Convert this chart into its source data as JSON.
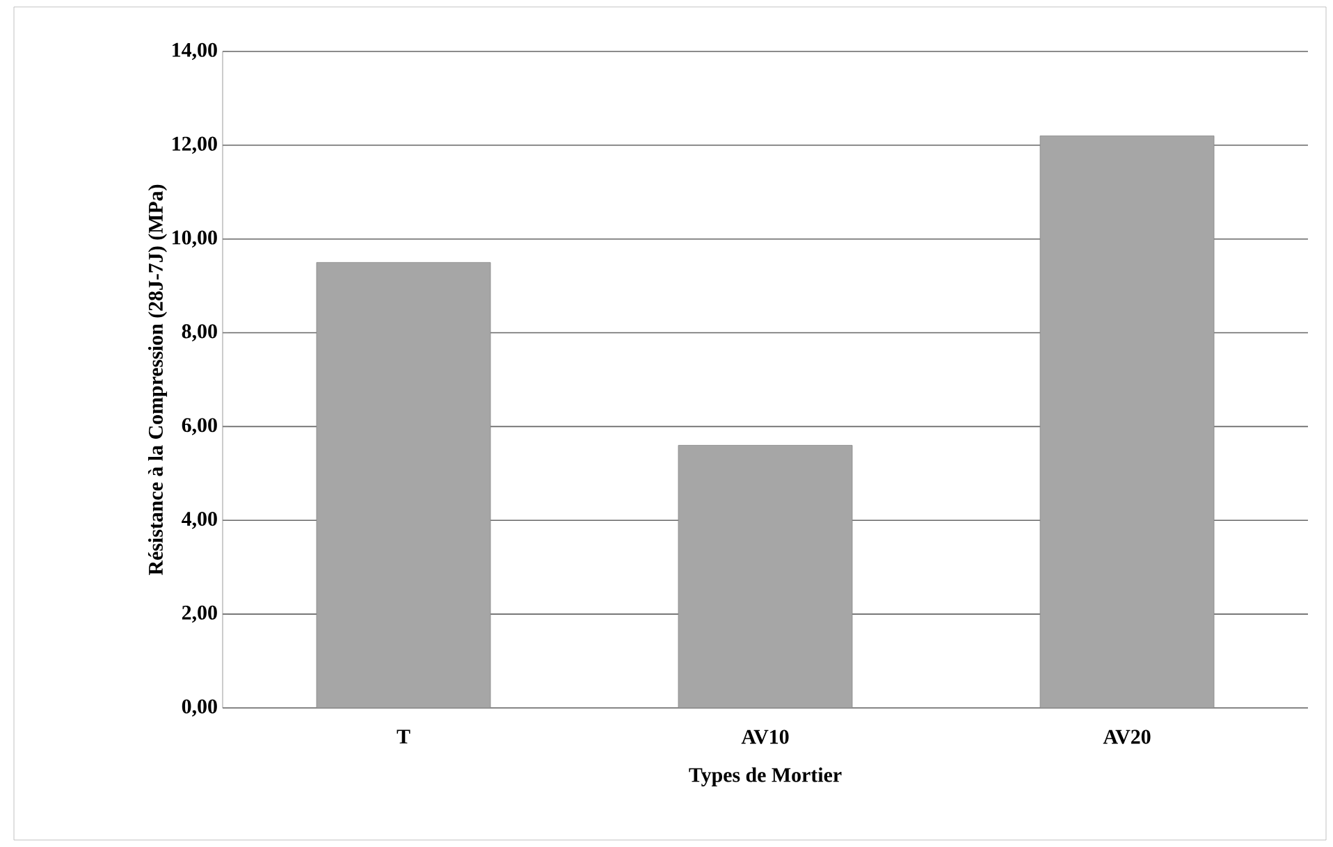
{
  "chart_data": {
    "type": "bar",
    "xlabel": "Types de Mortier",
    "ylabel": "Résistance à la Compression  (28J-7J) (MPa)",
    "categories": [
      "T",
      "AV10",
      "AV20"
    ],
    "values": [
      9.5,
      5.6,
      12.2
    ],
    "color": "#a6a6a6",
    "ylim": [
      0,
      14
    ],
    "yticks": [
      {
        "value": 0,
        "label": "0,00"
      },
      {
        "value": 2,
        "label": "2,00"
      },
      {
        "value": 4,
        "label": "4,00"
      },
      {
        "value": 6,
        "label": "6,00"
      },
      {
        "value": 8,
        "label": "8,00"
      },
      {
        "value": 10,
        "label": "10,00"
      },
      {
        "value": 12,
        "label": "12,00"
      },
      {
        "value": 14,
        "label": "14,00"
      }
    ],
    "grid": "y"
  }
}
